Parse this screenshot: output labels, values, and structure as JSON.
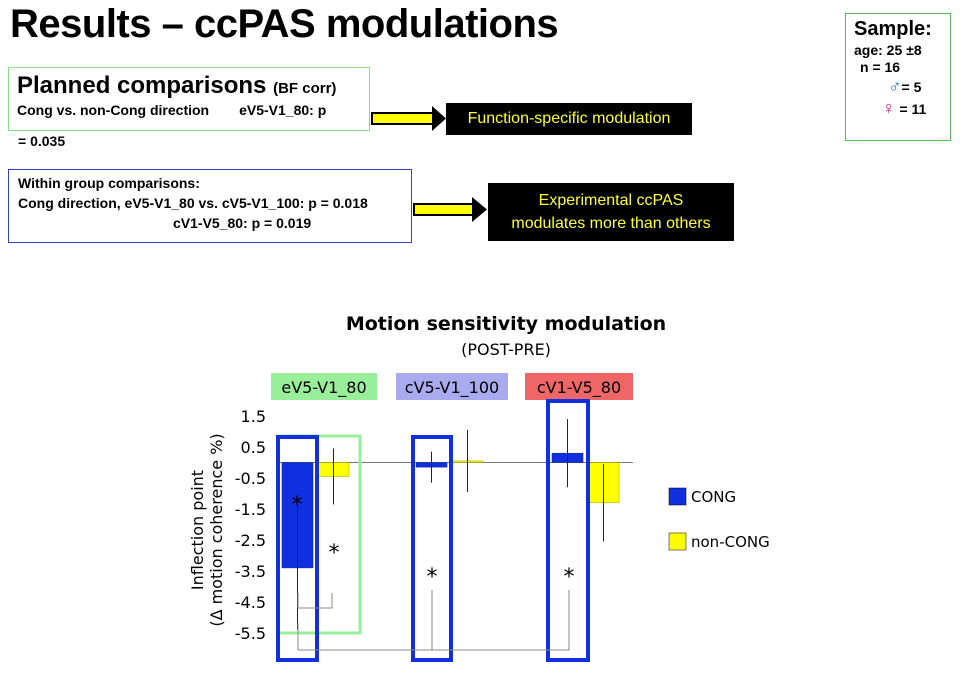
{
  "slide": {
    "title": "Results – ccPAS modulations",
    "planned": {
      "heading": "Planned comparisons",
      "heading_note": "(BF corr)",
      "line1_a": "Cong vs. non-Cong direction",
      "line1_b": "eV5-V1_80: p",
      "line2": "= 0.035"
    },
    "within": {
      "line1": "Within group comparisons:",
      "line2": "Cong direction, eV5-V1_80 vs. cV5-V1_100: p = 0.018",
      "line3": "cV1-V5_80: p = 0.019"
    },
    "callout1": "Function-specific modulation",
    "callout2_line1": "Experimental ccPAS",
    "callout2_line2": "modulates more than others",
    "sample": {
      "heading": "Sample:",
      "age": "age: 25 ±8",
      "n": "n = 16",
      "male_symbol": "♂",
      "male": "= 5",
      "female_symbol": "♀",
      "female": "= 11"
    }
  },
  "chart_data": {
    "type": "bar",
    "title": "Motion sensitivity modulation",
    "subtitle": "(POST-PRE)",
    "ylabel_line1": "Inflection point",
    "ylabel_line2": "(Δ motion coherence %)",
    "ylim": [
      -5.5,
      1.5
    ],
    "yticks": [
      1.5,
      0.5,
      -0.5,
      -1.5,
      -2.5,
      -3.5,
      -4.5,
      -5.5
    ],
    "categories": [
      "eV5-V1_80",
      "cV5-V1_100",
      "cV1-V5_80"
    ],
    "category_colors": [
      "#99ee99",
      "#aaaaee",
      "#ee6666"
    ],
    "series": [
      {
        "name": "CONG",
        "color": "#1030e0",
        "values": [
          -3.4,
          -0.15,
          0.3
        ],
        "error": [
          2.0,
          0.5,
          1.1
        ]
      },
      {
        "name": "non-CONG",
        "color": "#ffff00",
        "values": [
          -0.45,
          0.05,
          -1.3
        ],
        "error": [
          0.9,
          1.0,
          1.25
        ]
      }
    ],
    "annotations": [
      "*",
      "*",
      "*",
      "*"
    ],
    "legend_position": "right",
    "grid": false
  }
}
